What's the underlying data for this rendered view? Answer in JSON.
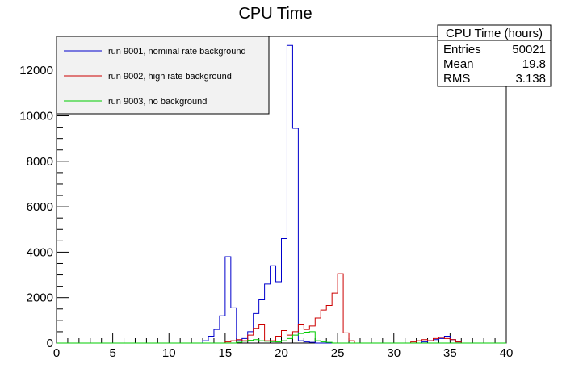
{
  "chart_data": {
    "type": "line",
    "title": "CPU Time",
    "xlabel": "",
    "ylabel": "",
    "xlim": [
      0,
      40
    ],
    "ylim": [
      0,
      13500
    ],
    "grid": false,
    "legend_placement": "top-left",
    "x_ticks": [
      "0",
      "5",
      "10",
      "15",
      "20",
      "25",
      "30",
      "35",
      "40"
    ],
    "y_ticks": [
      "0",
      "2000",
      "4000",
      "6000",
      "8000",
      "10000",
      "12000"
    ],
    "bin_width": 0.5,
    "series": [
      {
        "name": "run 9001, nominal rate background",
        "color": "#0000cc",
        "bins": [
          [
            13.0,
            100
          ],
          [
            13.5,
            300
          ],
          [
            14.0,
            600
          ],
          [
            14.5,
            1200
          ],
          [
            15.0,
            3800
          ],
          [
            15.5,
            1550
          ],
          [
            16.0,
            100
          ],
          [
            16.5,
            200
          ],
          [
            17.0,
            500
          ],
          [
            17.5,
            1300
          ],
          [
            18.0,
            1900
          ],
          [
            18.5,
            2600
          ],
          [
            19.0,
            3400
          ],
          [
            19.5,
            2700
          ],
          [
            20.0,
            4600
          ],
          [
            20.5,
            13100
          ],
          [
            21.0,
            9450
          ],
          [
            21.5,
            100
          ],
          [
            22.0,
            50
          ],
          [
            22.5,
            30
          ],
          [
            32.5,
            50
          ],
          [
            33.0,
            100
          ],
          [
            33.5,
            150
          ],
          [
            34.0,
            200
          ],
          [
            34.5,
            300
          ],
          [
            35.0,
            150
          ],
          [
            35.5,
            50
          ]
        ]
      },
      {
        "name": "run 9002, high rate background",
        "color": "#cc0000",
        "bins": [
          [
            15.0,
            50
          ],
          [
            15.5,
            100
          ],
          [
            16.0,
            150
          ],
          [
            16.5,
            100
          ],
          [
            17.0,
            350
          ],
          [
            17.5,
            650
          ],
          [
            18.0,
            800
          ],
          [
            18.5,
            100
          ],
          [
            19.0,
            100
          ],
          [
            19.5,
            300
          ],
          [
            20.0,
            550
          ],
          [
            20.5,
            350
          ],
          [
            21.0,
            500
          ],
          [
            21.5,
            800
          ],
          [
            22.0,
            600
          ],
          [
            22.5,
            750
          ],
          [
            23.0,
            1100
          ],
          [
            23.5,
            1450
          ],
          [
            24.0,
            1650
          ],
          [
            24.5,
            2200
          ],
          [
            25.0,
            3050
          ],
          [
            25.5,
            450
          ],
          [
            26.0,
            100
          ],
          [
            31.5,
            50
          ],
          [
            32.0,
            100
          ],
          [
            32.5,
            150
          ],
          [
            33.0,
            100
          ],
          [
            33.5,
            200
          ],
          [
            34.0,
            250
          ],
          [
            34.5,
            200
          ],
          [
            35.0,
            150
          ],
          [
            35.5,
            50
          ]
        ]
      },
      {
        "name": "run 9003, no background",
        "color": "#00cc00",
        "bins": [
          [
            16.0,
            30
          ],
          [
            16.5,
            80
          ],
          [
            17.0,
            120
          ],
          [
            17.5,
            150
          ],
          [
            18.0,
            100
          ],
          [
            18.5,
            80
          ],
          [
            19.0,
            60
          ],
          [
            19.5,
            50
          ],
          [
            20.0,
            100
          ],
          [
            20.5,
            200
          ],
          [
            21.0,
            350
          ],
          [
            21.5,
            420
          ],
          [
            22.0,
            480
          ],
          [
            22.5,
            500
          ],
          [
            23.0,
            100
          ],
          [
            23.5,
            50
          ],
          [
            24.0,
            30
          ]
        ]
      }
    ],
    "stats_box": {
      "title": "CPU Time (hours)",
      "rows": [
        {
          "label": "Entries",
          "value": "50021"
        },
        {
          "label": "Mean",
          "value": "19.8"
        },
        {
          "label": "RMS",
          "value": "3.138"
        }
      ]
    }
  }
}
